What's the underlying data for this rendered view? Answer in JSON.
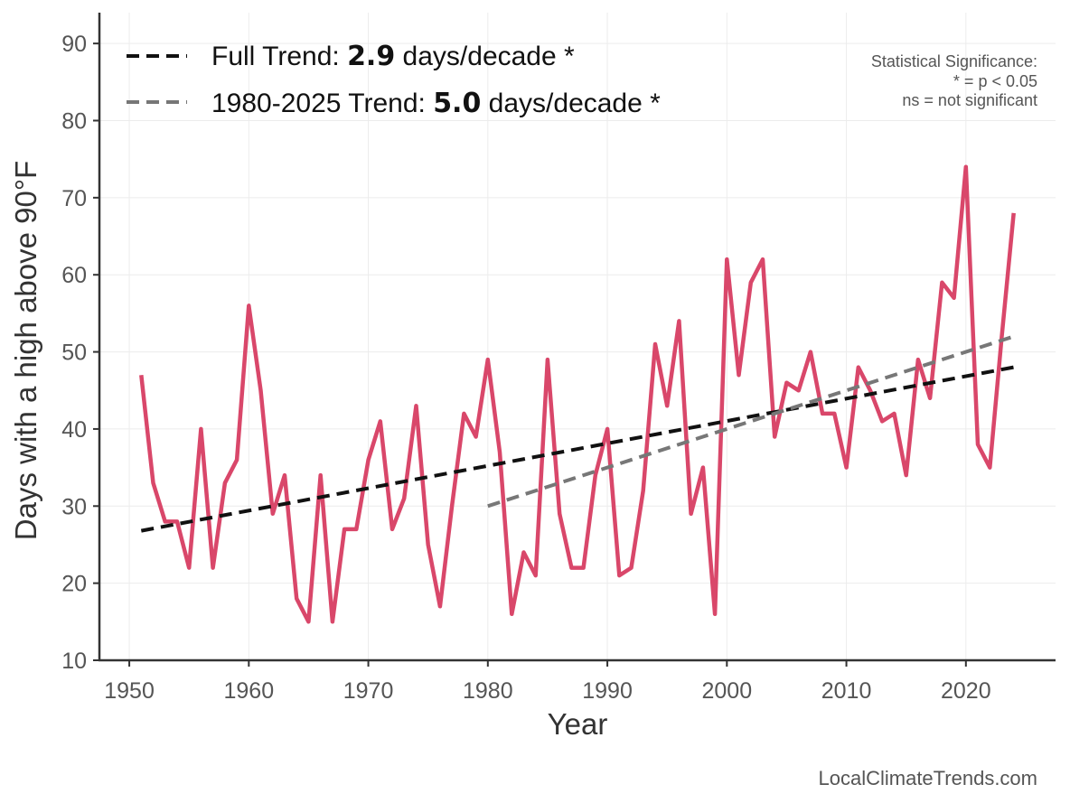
{
  "chart_data": {
    "type": "line",
    "xlabel": "Year",
    "ylabel": "Days with a high above 90°F",
    "xlim": [
      1947.5,
      2027.5
    ],
    "ylim": [
      10,
      94
    ],
    "x_ticks": [
      1950,
      1960,
      1970,
      1980,
      1990,
      2000,
      2010,
      2020
    ],
    "y_ticks": [
      10,
      20,
      30,
      40,
      50,
      60,
      70,
      80,
      90
    ],
    "grid": true,
    "legend_placement": "top-left",
    "series": [
      {
        "color": "#d9476a",
        "x": [
          1951,
          1952,
          1953,
          1954,
          1955,
          1956,
          1957,
          1958,
          1959,
          1960,
          1961,
          1962,
          1963,
          1964,
          1965,
          1966,
          1967,
          1968,
          1969,
          1970,
          1971,
          1972,
          1973,
          1974,
          1975,
          1976,
          1977,
          1978,
          1979,
          1980,
          1981,
          1982,
          1983,
          1984,
          1985,
          1986,
          1987,
          1988,
          1989,
          1990,
          1991,
          1992,
          1993,
          1994,
          1995,
          1996,
          1997,
          1998,
          1999,
          2000,
          2001,
          2002,
          2003,
          2004,
          2005,
          2006,
          2007,
          2008,
          2009,
          2010,
          2011,
          2012,
          2013,
          2014,
          2015,
          2016,
          2017,
          2018,
          2019,
          2020,
          2021,
          2022,
          2023,
          2024
        ],
        "values": [
          47,
          33,
          28,
          28,
          22,
          40,
          22,
          33,
          36,
          56,
          45,
          29,
          34,
          18,
          15,
          34,
          15,
          27,
          27,
          36,
          41,
          27,
          31,
          43,
          25,
          17,
          30,
          42,
          39,
          49,
          37,
          16,
          24,
          21,
          49,
          29,
          22,
          22,
          34,
          40,
          21,
          22,
          32,
          51,
          43,
          54,
          29,
          35,
          16,
          62,
          47,
          59,
          62,
          39,
          46,
          45,
          50,
          42,
          42,
          35,
          48,
          45,
          41,
          42,
          34,
          49,
          44,
          59,
          57,
          74,
          38,
          35,
          52,
          68
        ]
      },
      {
        "name": "Full Trend",
        "style": "dashed",
        "color": "#111111",
        "x": [
          1951,
          2024
        ],
        "values": [
          26.8,
          48.0
        ]
      },
      {
        "name": "1980-2025 Trend",
        "style": "dashed",
        "color": "#777777",
        "x": [
          1980,
          2024
        ],
        "values": [
          30.0,
          52.0
        ]
      }
    ],
    "legend": [
      {
        "prefix": "Full Trend: ",
        "value": "2.9",
        "suffix": " days/decade *",
        "color": "#111111"
      },
      {
        "prefix": "1980-2025 Trend: ",
        "value": "5.0",
        "suffix": " days/decade *",
        "color": "#777777"
      }
    ],
    "annotation": {
      "lines": [
        "Statistical Significance:",
        "* = p < 0.05",
        "ns = not significant"
      ]
    },
    "credit": "LocalClimateTrends.com"
  }
}
